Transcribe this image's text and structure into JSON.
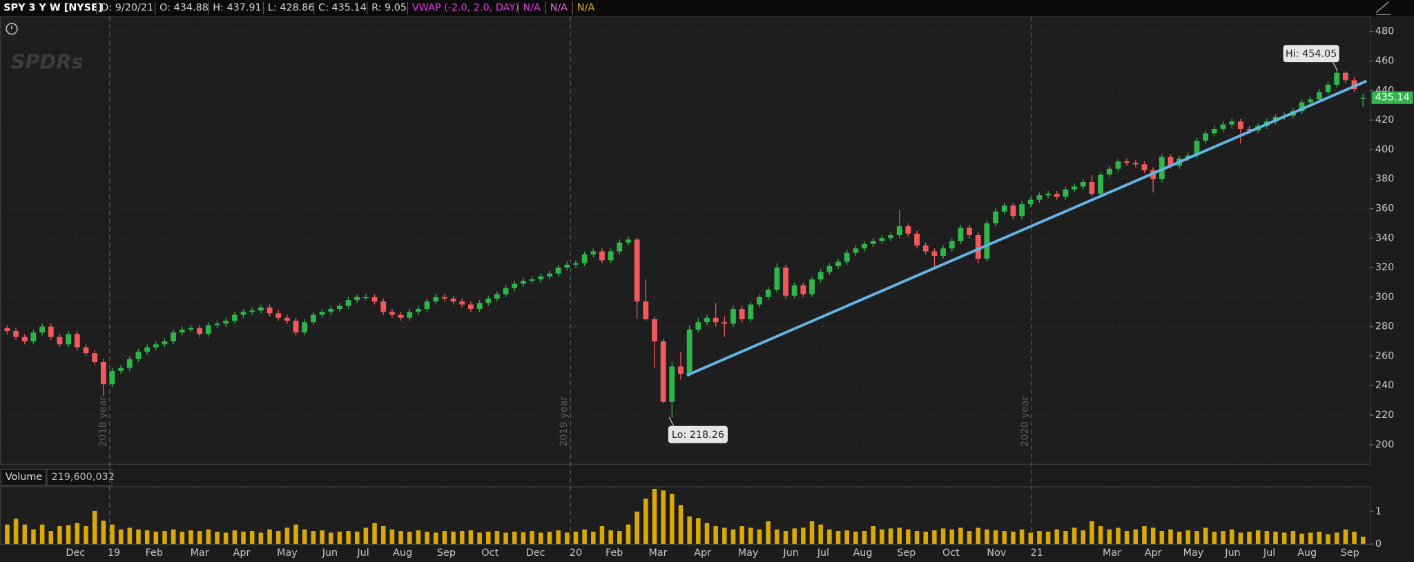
{
  "chart_data": [
    {
      "type": "candlestick",
      "title": "SPY 3 Y W [NYSE]",
      "logo": "SPDRs",
      "readouts": [
        {
          "text": "D: 9/20/21",
          "color": "#d8d8d8"
        },
        {
          "text": "O: 434.88",
          "color": "#d8d8d8"
        },
        {
          "text": "H: 437.91",
          "color": "#d8d8d8"
        },
        {
          "text": "L: 428.86",
          "color": "#d8d8d8"
        },
        {
          "text": "C: 435.14",
          "color": "#d8d8d8"
        },
        {
          "text": "R: 9.05",
          "color": "#d8d8d8"
        },
        {
          "text": "VWAP (-2.0, 2.0, DAY)",
          "color": "#e03ee0"
        },
        {
          "text": "N/A",
          "color": "#e03ee0"
        },
        {
          "text": "N/A",
          "color": "#e86ad8"
        },
        {
          "text": "N/A",
          "color": "#e0b020"
        }
      ],
      "annotations": [
        "Hi: 454.05",
        "Lo: 218.26"
      ],
      "up_color": "#2fb54a",
      "down_color": "#f2595c",
      "categories": [
        null,
        null,
        null,
        null,
        null,
        null,
        null,
        null,
        null,
        null,
        null,
        null,
        null,
        null,
        null,
        null,
        null,
        null,
        null,
        null,
        null,
        null,
        null,
        null,
        null,
        null,
        null,
        null,
        null,
        null,
        null,
        null,
        null,
        null,
        null,
        null,
        null,
        null,
        null,
        null,
        null,
        null,
        null,
        null,
        null,
        null,
        null,
        null,
        null,
        null,
        null,
        null,
        null,
        null,
        null,
        null,
        null,
        null,
        null,
        null,
        null,
        null,
        null,
        null,
        null,
        null,
        null,
        null,
        null,
        null,
        null,
        null,
        null,
        null,
        null,
        null,
        null,
        null,
        null,
        null,
        null,
        null,
        null,
        null,
        null,
        null,
        null,
        null,
        null,
        null,
        null,
        null,
        null,
        null,
        null,
        null,
        null,
        null,
        null,
        null,
        null,
        null,
        null,
        null,
        null,
        null,
        null,
        null,
        null,
        null,
        null,
        null,
        null,
        null,
        null,
        null,
        null,
        null,
        null,
        null,
        null,
        null,
        null,
        null,
        null,
        null,
        null,
        null,
        null,
        null,
        null,
        null,
        null,
        null,
        null,
        null,
        null,
        null,
        null,
        null,
        null,
        null,
        null,
        null,
        null,
        null,
        null,
        null,
        null,
        null,
        null,
        null,
        null,
        null,
        null,
        null
      ],
      "open": [
        279,
        277,
        273,
        270,
        276,
        280,
        273,
        268,
        275,
        266,
        262,
        256,
        241,
        250,
        252,
        258,
        263,
        266,
        268,
        270,
        276,
        278,
        279,
        275,
        281,
        282,
        284,
        288,
        290,
        291,
        293,
        289,
        286,
        284,
        276,
        283,
        288,
        290,
        292,
        294,
        298,
        300,
        300,
        297,
        290,
        288,
        286,
        290,
        292,
        297,
        300,
        299,
        297,
        295,
        292,
        296,
        299,
        302,
        306,
        309,
        311,
        312,
        314,
        316,
        320,
        322,
        323,
        329,
        331,
        325,
        331,
        337,
        339,
        297,
        285,
        270,
        229,
        253,
        248,
        278,
        283,
        286,
        283,
        282,
        292,
        285,
        295,
        300,
        305,
        320,
        301,
        308,
        302,
        312,
        317,
        321,
        324,
        330,
        333,
        336,
        338,
        340,
        342,
        348,
        343,
        335,
        331,
        328,
        333,
        338,
        347,
        342,
        326,
        350,
        358,
        362,
        355,
        363,
        366,
        369,
        370,
        368,
        373,
        375,
        378,
        370,
        383,
        387,
        392,
        391,
        390,
        386,
        380,
        395,
        389,
        394,
        396,
        406,
        411,
        414,
        417,
        419,
        414,
        413,
        416,
        419,
        422,
        423,
        426,
        432,
        434,
        439,
        444,
        452,
        447,
        434.88
      ],
      "high": [
        281,
        279,
        275,
        278,
        282,
        282,
        275,
        277,
        277,
        268,
        264,
        258,
        252,
        254,
        260,
        265,
        268,
        270,
        272,
        278,
        280,
        281,
        281,
        283,
        284,
        286,
        290,
        292,
        293,
        295,
        295,
        291,
        288,
        286,
        285,
        290,
        292,
        294,
        296,
        300,
        302,
        302,
        302,
        299,
        292,
        290,
        292,
        294,
        299,
        302,
        302,
        301,
        299,
        297,
        298,
        301,
        304,
        308,
        311,
        313,
        314,
        316,
        318,
        322,
        324,
        325,
        331,
        333,
        333,
        333,
        339,
        341,
        340,
        312,
        287,
        272,
        256,
        263,
        281,
        286,
        288,
        296,
        287,
        294,
        294,
        297,
        302,
        307,
        323,
        322,
        310,
        310,
        314,
        319,
        323,
        326,
        332,
        335,
        338,
        340,
        342,
        344,
        359,
        350,
        345,
        337,
        333,
        335,
        340,
        349,
        349,
        344,
        352,
        360,
        364,
        364,
        365,
        368,
        371,
        372,
        372,
        375,
        377,
        380,
        383,
        385,
        389,
        394,
        394,
        393,
        392,
        388,
        397,
        397,
        396,
        398,
        408,
        413,
        416,
        419,
        421,
        421,
        416,
        418,
        421,
        424,
        425,
        428,
        434,
        436,
        441,
        446,
        454.05,
        453,
        449,
        437.91
      ],
      "low": [
        275,
        271,
        268,
        268,
        274,
        271,
        266,
        266,
        264,
        260,
        254,
        233,
        239,
        248,
        250,
        256,
        261,
        264,
        266,
        268,
        274,
        276,
        273,
        273,
        279,
        280,
        282,
        286,
        288,
        289,
        287,
        284,
        282,
        274,
        274,
        281,
        286,
        288,
        290,
        292,
        296,
        298,
        295,
        288,
        286,
        284,
        284,
        288,
        290,
        295,
        297,
        295,
        293,
        290,
        290,
        294,
        297,
        300,
        304,
        307,
        309,
        310,
        312,
        314,
        318,
        320,
        321,
        327,
        323,
        323,
        329,
        335,
        285,
        284,
        252,
        228,
        218.26,
        244,
        246,
        276,
        281,
        280,
        273,
        280,
        283,
        283,
        293,
        298,
        303,
        299,
        299,
        300,
        300,
        310,
        315,
        319,
        322,
        328,
        331,
        334,
        336,
        338,
        340,
        341,
        333,
        329,
        320,
        326,
        331,
        336,
        340,
        323,
        324,
        348,
        356,
        353,
        353,
        361,
        364,
        367,
        366,
        366,
        371,
        373,
        368,
        368,
        381,
        385,
        389,
        388,
        384,
        371,
        378,
        387,
        387,
        392,
        394,
        404,
        409,
        412,
        415,
        404,
        411,
        411,
        414,
        417,
        420,
        421,
        424,
        430,
        432,
        437,
        442,
        445,
        439,
        428.86
      ],
      "close": [
        277,
        273,
        270,
        276,
        280,
        273,
        268,
        275,
        266,
        262,
        256,
        241,
        250,
        252,
        258,
        263,
        266,
        268,
        270,
        276,
        278,
        279,
        275,
        281,
        282,
        284,
        288,
        290,
        291,
        293,
        289,
        286,
        284,
        276,
        283,
        288,
        290,
        292,
        294,
        298,
        300,
        300,
        297,
        290,
        288,
        286,
        290,
        292,
        297,
        300,
        299,
        297,
        295,
        292,
        296,
        299,
        302,
        306,
        309,
        311,
        312,
        314,
        316,
        320,
        322,
        323,
        329,
        331,
        325,
        331,
        337,
        339,
        297,
        285,
        270,
        229,
        253,
        248,
        278,
        283,
        286,
        283,
        282,
        292,
        285,
        295,
        300,
        305,
        320,
        301,
        308,
        302,
        312,
        317,
        321,
        324,
        330,
        333,
        336,
        338,
        340,
        342,
        348,
        343,
        335,
        331,
        328,
        333,
        338,
        347,
        342,
        326,
        350,
        358,
        362,
        355,
        363,
        366,
        369,
        370,
        368,
        373,
        375,
        378,
        370,
        383,
        387,
        392,
        391,
        390,
        386,
        380,
        395,
        389,
        394,
        396,
        406,
        411,
        414,
        417,
        419,
        414,
        413,
        416,
        419,
        422,
        423,
        426,
        432,
        434,
        439,
        444,
        452,
        447,
        441,
        435.14
      ],
      "ylim": [
        187,
        490.4
      ],
      "yticks": [
        200,
        220,
        240,
        260,
        280,
        300,
        320,
        340,
        360,
        380,
        400,
        420,
        440,
        460,
        480
      ],
      "xticks": [
        {
          "value": 7.8,
          "label": "Dec"
        },
        {
          "value": 12.2,
          "label": "19"
        },
        {
          "value": 16.8,
          "label": "Feb"
        },
        {
          "value": 22,
          "label": "Mar"
        },
        {
          "value": 26.8,
          "label": "Apr"
        },
        {
          "value": 32,
          "label": "May"
        },
        {
          "value": 36.9,
          "label": "Jun"
        },
        {
          "value": 40.7,
          "label": "Jul"
        },
        {
          "value": 45.2,
          "label": "Aug"
        },
        {
          "value": 50.2,
          "label": "Sep"
        },
        {
          "value": 55.2,
          "label": "Oct"
        },
        {
          "value": 60.4,
          "label": "Dec"
        },
        {
          "value": 65,
          "label": "20"
        },
        {
          "value": 69.4,
          "label": "Feb"
        },
        {
          "value": 74.4,
          "label": "Mar"
        },
        {
          "value": 79.5,
          "label": "Apr"
        },
        {
          "value": 84.7,
          "label": "May"
        },
        {
          "value": 89.6,
          "label": "Jun"
        },
        {
          "value": 93.3,
          "label": "Jul"
        },
        {
          "value": 97.8,
          "label": "Aug"
        },
        {
          "value": 102.8,
          "label": "Sep"
        },
        {
          "value": 107.9,
          "label": "Oct"
        },
        {
          "value": 113.1,
          "label": "Nov"
        },
        {
          "value": 117.7,
          "label": "21"
        },
        {
          "value": 126.3,
          "label": "Mar"
        },
        {
          "value": 131,
          "label": "Apr"
        },
        {
          "value": 135.6,
          "label": "May"
        },
        {
          "value": 140.1,
          "label": "Jun"
        },
        {
          "value": 144.3,
          "label": "Jul"
        },
        {
          "value": 148.6,
          "label": "Aug"
        },
        {
          "value": 153.5,
          "label": "Sep"
        }
      ],
      "year_separators": [
        {
          "value": 11.7,
          "label": "2018 year"
        },
        {
          "value": 64.4,
          "label": "2019 year"
        },
        {
          "value": 117.1,
          "label": "2020 year"
        }
      ],
      "trendline": {
        "x": [
          77.7,
          155.4
        ],
        "y": [
          247,
          446.5
        ],
        "color": "#63b5e6"
      },
      "grid": true
    },
    {
      "type": "bar",
      "title": "Volume",
      "readout": "219,600,032",
      "color": "#d9a90c",
      "values": [
        0.6,
        0.78,
        0.6,
        0.45,
        0.6,
        0.4,
        0.55,
        0.58,
        0.65,
        0.55,
        1.02,
        0.72,
        0.6,
        0.45,
        0.5,
        0.45,
        0.42,
        0.38,
        0.4,
        0.45,
        0.38,
        0.42,
        0.4,
        0.45,
        0.38,
        0.35,
        0.42,
        0.38,
        0.4,
        0.35,
        0.45,
        0.4,
        0.5,
        0.6,
        0.45,
        0.4,
        0.42,
        0.35,
        0.38,
        0.4,
        0.38,
        0.5,
        0.65,
        0.55,
        0.45,
        0.4,
        0.38,
        0.42,
        0.38,
        0.35,
        0.4,
        0.38,
        0.4,
        0.42,
        0.35,
        0.38,
        0.4,
        0.35,
        0.38,
        0.36,
        0.4,
        0.35,
        0.38,
        0.42,
        0.35,
        0.38,
        0.45,
        0.38,
        0.55,
        0.42,
        0.4,
        0.6,
        1.0,
        1.4,
        1.7,
        1.65,
        1.55,
        1.2,
        0.85,
        0.8,
        0.65,
        0.55,
        0.5,
        0.45,
        0.55,
        0.5,
        0.45,
        0.7,
        0.45,
        0.4,
        0.48,
        0.5,
        0.7,
        0.6,
        0.45,
        0.4,
        0.42,
        0.38,
        0.4,
        0.55,
        0.45,
        0.48,
        0.5,
        0.45,
        0.4,
        0.38,
        0.42,
        0.48,
        0.45,
        0.5,
        0.4,
        0.5,
        0.45,
        0.42,
        0.4,
        0.38,
        0.45,
        0.35,
        0.4,
        0.38,
        0.45,
        0.4,
        0.5,
        0.42,
        0.7,
        0.55,
        0.45,
        0.5,
        0.4,
        0.45,
        0.55,
        0.5,
        0.4,
        0.45,
        0.38,
        0.42,
        0.4,
        0.5,
        0.38,
        0.4,
        0.45,
        0.35,
        0.38,
        0.42,
        0.4,
        0.38,
        0.35,
        0.4,
        0.32,
        0.35,
        0.38,
        0.3,
        0.35,
        0.45,
        0.38,
        0.2196
      ],
      "ylim": [
        0,
        1.75
      ],
      "yticks": [
        0,
        1
      ]
    }
  ]
}
